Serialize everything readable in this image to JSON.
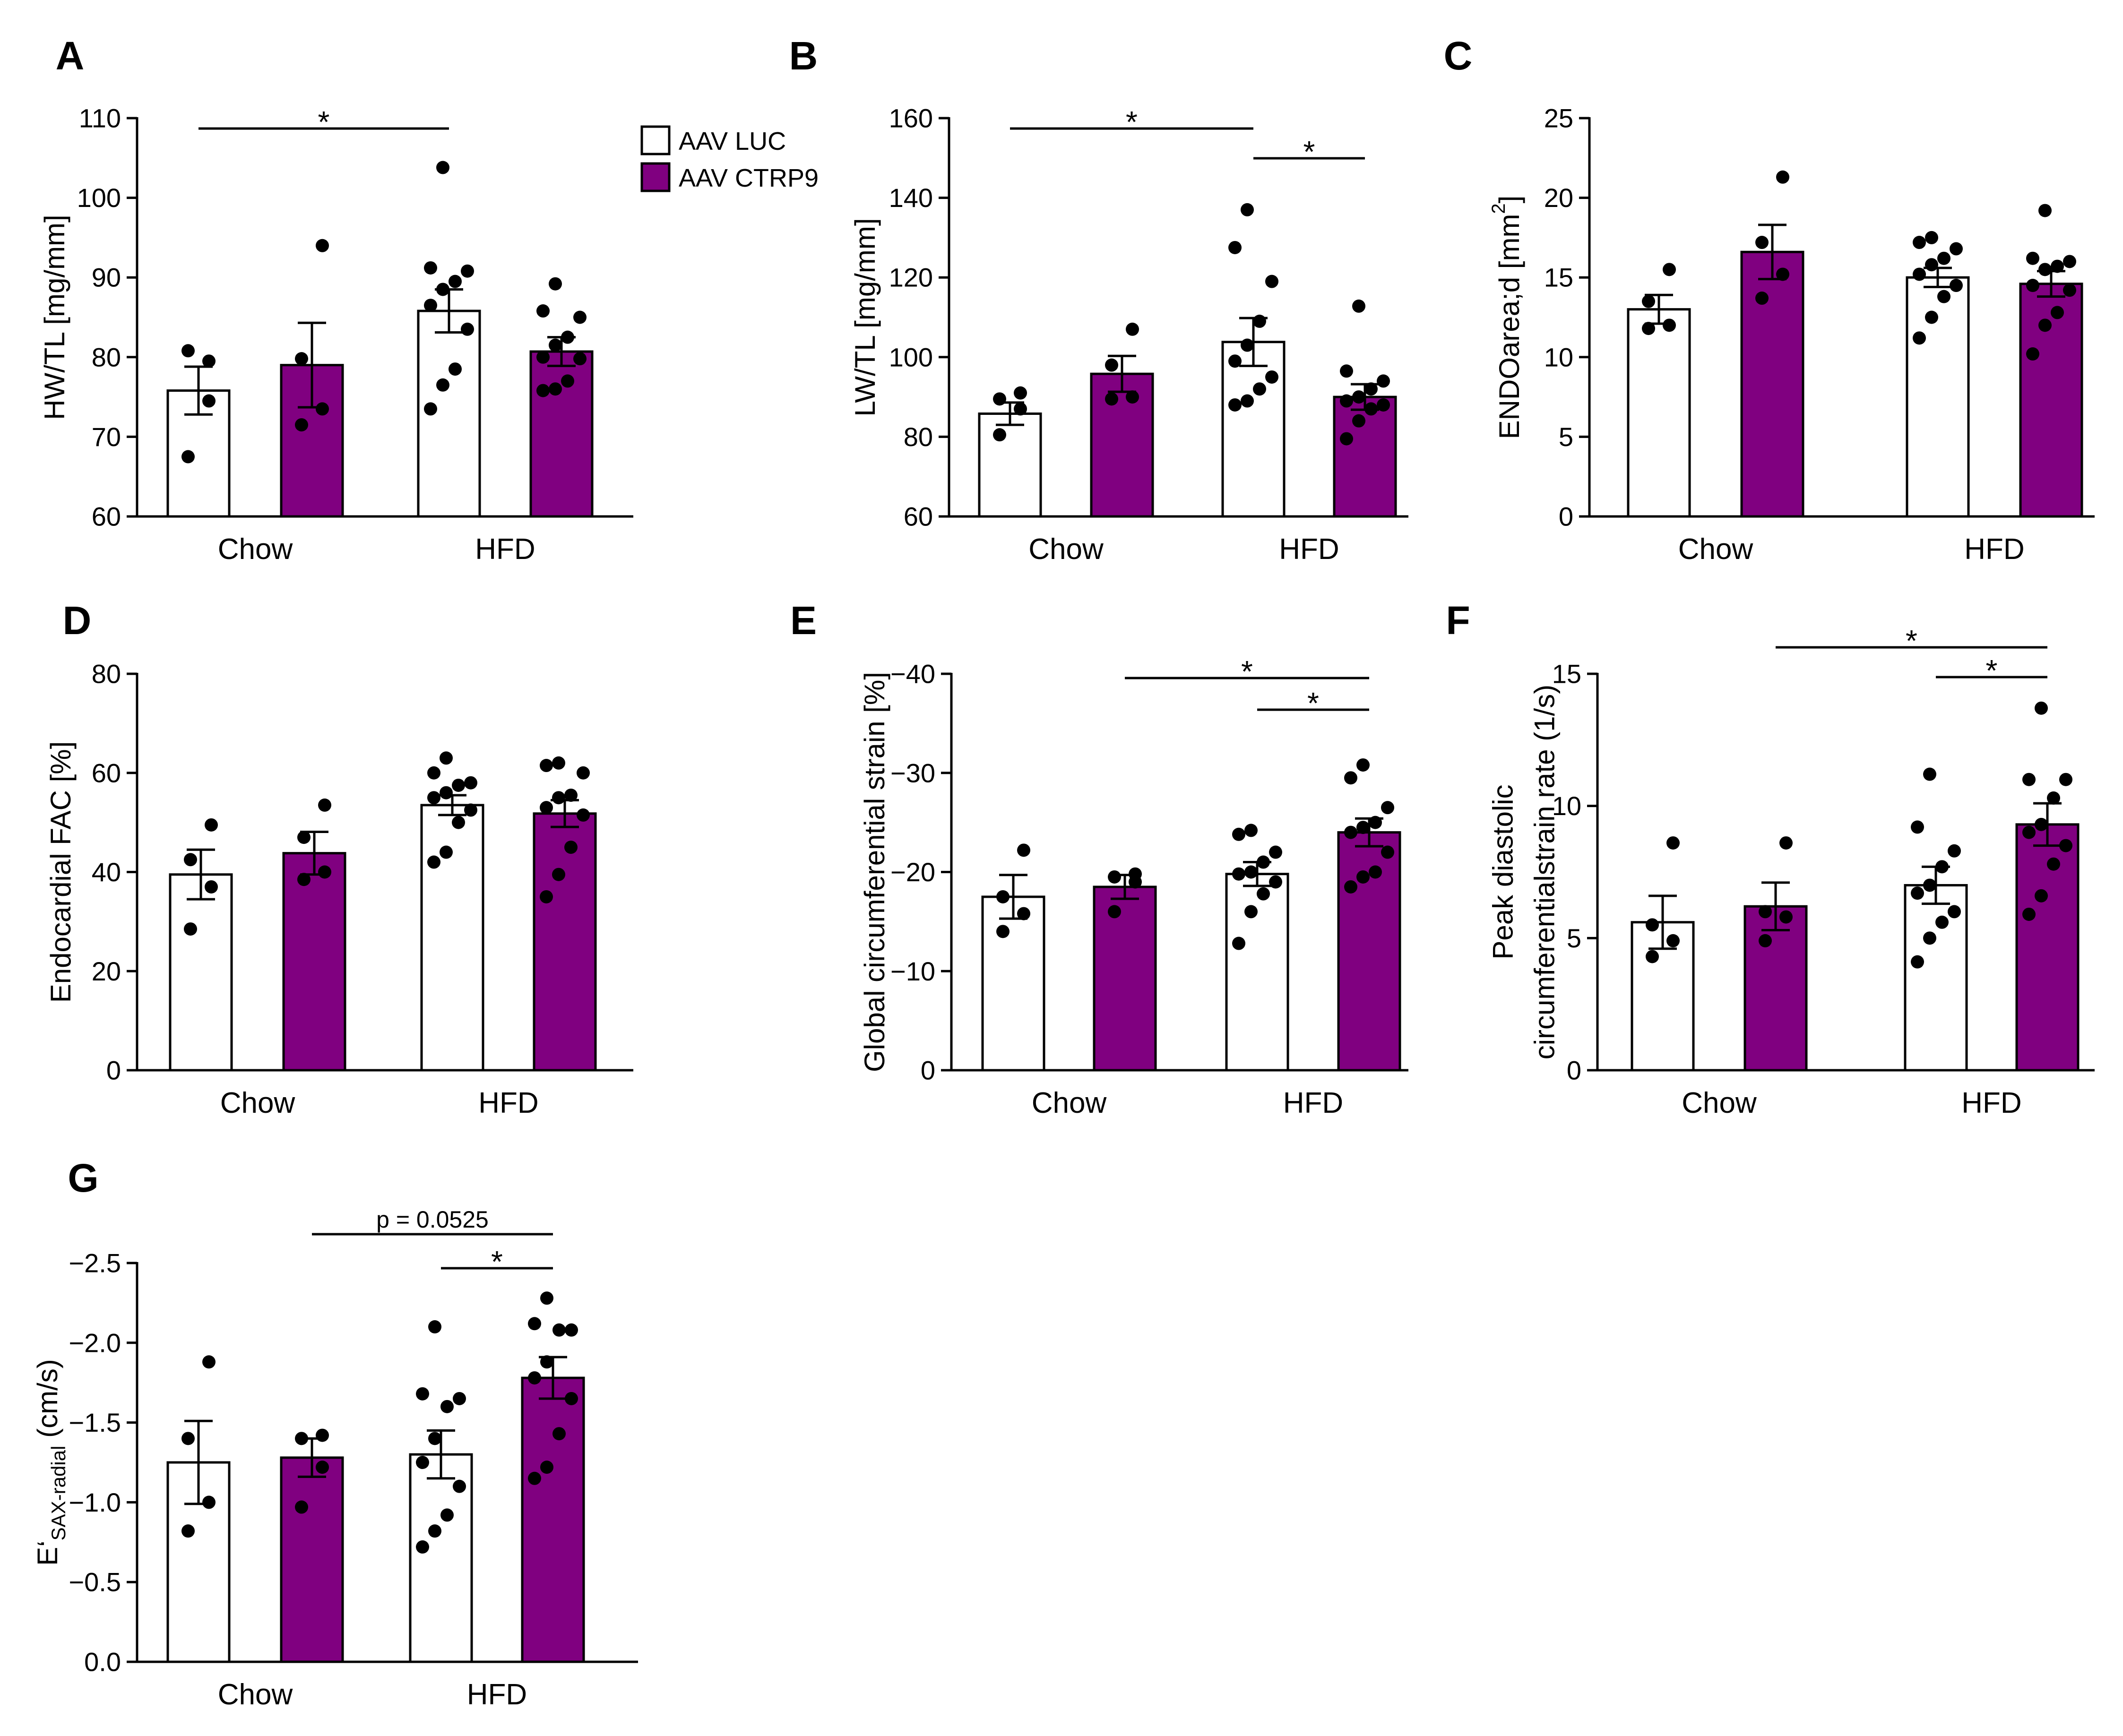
{
  "colors": {
    "luc": "#ffffff",
    "ctrp9": "#800080",
    "stroke": "#000000"
  },
  "legend": [
    {
      "label": "AAV LUC",
      "color": "#ffffff"
    },
    {
      "label": "AAV CTRP9",
      "color": "#800080"
    }
  ],
  "chart_data": [
    {
      "id": "A",
      "letter": "A",
      "type": "bar",
      "title": "",
      "xlabel": "",
      "ylabel": "HW/TL [mg/mm]",
      "categories": [
        "Chow",
        "HFD"
      ],
      "ylim": [
        60,
        110
      ],
      "ticks": [
        60,
        70,
        80,
        90,
        100,
        110
      ],
      "tick_labels": [
        "60",
        "70",
        "80",
        "90",
        "100",
        "110"
      ],
      "series": [
        {
          "name": "AAV LUC",
          "means": [
            75.8,
            85.8
          ],
          "sem": [
            3.0,
            2.7
          ],
          "points": [
            [
              67.5,
              79.5,
              80.8,
              74.5
            ],
            [
              73.5,
              76.5,
              78.5,
              83.5,
              86.5,
              88.5,
              89.5,
              90.8,
              91.2,
              103.8
            ]
          ]
        },
        {
          "name": "AAV CTRP9",
          "means": [
            79.0,
            80.7
          ],
          "sem": [
            5.3,
            1.8
          ],
          "points": [
            [
              71.5,
              73.5,
              79.8,
              94.0
            ],
            [
              75.8,
              76.0,
              77.0,
              79.8,
              80.0,
              81.5,
              82.5,
              85.0,
              85.8,
              89.2
            ]
          ]
        }
      ],
      "significance": [
        {
          "from": [
            0,
            0
          ],
          "to": [
            1,
            0
          ],
          "label": "*"
        }
      ]
    },
    {
      "id": "B",
      "letter": "B",
      "type": "bar",
      "title": "",
      "xlabel": "",
      "ylabel": "LW/TL [mg/mm]",
      "categories": [
        "Chow",
        "HFD"
      ],
      "ylim": [
        60,
        160
      ],
      "ticks": [
        60,
        80,
        100,
        120,
        140,
        160
      ],
      "tick_labels": [
        "60",
        "80",
        "100",
        "120",
        "140",
        "160"
      ],
      "series": [
        {
          "name": "AAV LUC",
          "means": [
            85.8,
            103.8
          ],
          "sem": [
            2.8,
            6.0
          ],
          "points": [
            [
              80.5,
              87.0,
              89.5,
              91.0
            ],
            [
              88.0,
              89.0,
              92.0,
              95.0,
              99.0,
              103.0,
              109.0,
              119.0,
              127.5,
              137.0
            ]
          ]
        },
        {
          "name": "AAV CTRP9",
          "means": [
            95.8,
            90.0
          ],
          "sem": [
            4.5,
            3.2
          ],
          "points": [
            [
              89.5,
              90.0,
              98.0,
              107.0
            ],
            [
              79.5,
              84.0,
              87.0,
              88.0,
              89.0,
              90.0,
              92.0,
              94.0,
              96.5,
              112.8
            ]
          ]
        }
      ],
      "significance": [
        {
          "from": [
            0,
            0
          ],
          "to": [
            1,
            0
          ],
          "label": "*"
        },
        {
          "from": [
            1,
            0
          ],
          "to": [
            1,
            1
          ],
          "label": "*"
        }
      ]
    },
    {
      "id": "C",
      "letter": "C",
      "type": "bar",
      "title": "",
      "xlabel": "",
      "ylabel": "ENDOarea;d [mm",
      "ylabel_sup": "2",
      "ylabel_end": "]",
      "categories": [
        "Chow",
        "HFD"
      ],
      "ylim": [
        0,
        25
      ],
      "ticks": [
        0,
        5,
        10,
        15,
        20,
        25
      ],
      "tick_labels": [
        "0",
        "5",
        "10",
        "15",
        "20",
        "25"
      ],
      "series": [
        {
          "name": "AAV LUC",
          "means": [
            13.0,
            15.0
          ],
          "sem": [
            0.9,
            0.6
          ],
          "points": [
            [
              11.8,
              12.0,
              13.5,
              15.5
            ],
            [
              11.2,
              12.5,
              13.8,
              14.5,
              15.2,
              15.8,
              16.2,
              16.8,
              17.2,
              17.5
            ]
          ]
        },
        {
          "name": "AAV CTRP9",
          "means": [
            16.6,
            14.6
          ],
          "sem": [
            1.7,
            0.8
          ],
          "points": [
            [
              13.7,
              15.2,
              17.2,
              21.3
            ],
            [
              10.2,
              12.0,
              12.8,
              14.2,
              14.5,
              15.5,
              15.7,
              16.0,
              16.2,
              19.2
            ]
          ]
        }
      ],
      "significance": []
    },
    {
      "id": "D",
      "letter": "D",
      "type": "bar",
      "title": "",
      "xlabel": "",
      "ylabel": "Endocardial FAC [%]",
      "categories": [
        "Chow",
        "HFD"
      ],
      "ylim": [
        0,
        80
      ],
      "ticks": [
        0,
        20,
        40,
        60,
        80
      ],
      "tick_labels": [
        "0",
        "20",
        "40",
        "60",
        "80"
      ],
      "series": [
        {
          "name": "AAV LUC",
          "means": [
            39.5,
            53.5
          ],
          "sem": [
            5.0,
            2.0
          ],
          "points": [
            [
              28.5,
              37.0,
              42.5,
              49.5
            ],
            [
              42.0,
              44.0,
              50.0,
              52.5,
              55.0,
              56.0,
              57.5,
              58.0,
              60.0,
              63.0
            ]
          ]
        },
        {
          "name": "AAV CTRP9",
          "means": [
            43.8,
            51.8
          ],
          "sem": [
            4.3,
            2.7
          ],
          "points": [
            [
              38.5,
              40.0,
              47.0,
              53.5
            ],
            [
              35.0,
              39.5,
              45.0,
              51.5,
              53.0,
              55.0,
              55.5,
              60.0,
              61.5,
              62.0
            ]
          ]
        }
      ],
      "significance": []
    },
    {
      "id": "E",
      "letter": "E",
      "type": "bar",
      "title": "",
      "xlabel": "",
      "ylabel": "Global circumferential strain [%]",
      "categories": [
        "Chow",
        "HFD"
      ],
      "ylim": [
        0,
        40
      ],
      "ticks": [
        0,
        10,
        20,
        30,
        40
      ],
      "tick_labels": [
        "0",
        "−10",
        "−20",
        "−30",
        "−40"
      ],
      "series": [
        {
          "name": "AAV LUC",
          "means": [
            17.5,
            19.8
          ],
          "sem": [
            2.2,
            1.2
          ],
          "points": [
            [
              14.0,
              15.8,
              17.5,
              22.2
            ],
            [
              12.8,
              16.0,
              17.8,
              19.0,
              19.8,
              20.0,
              21.0,
              22.0,
              23.8,
              24.2
            ]
          ]
        },
        {
          "name": "AAV CTRP9",
          "means": [
            18.5,
            24.0
          ],
          "sem": [
            1.2,
            1.4
          ],
          "points": [
            [
              16.0,
              19.0,
              19.5,
              19.8
            ],
            [
              18.5,
              19.5,
              20.0,
              22.0,
              24.0,
              24.5,
              25.0,
              26.5,
              29.5,
              30.8
            ]
          ]
        }
      ],
      "significance": [
        {
          "from": [
            0,
            1
          ],
          "to": [
            1,
            1
          ],
          "label": "*"
        },
        {
          "from": [
            1,
            0
          ],
          "to": [
            1,
            1
          ],
          "label": "*"
        }
      ]
    },
    {
      "id": "F",
      "letter": "F",
      "type": "bar",
      "title": "",
      "xlabel": "",
      "ylabel": "Peak diastolic",
      "ylabel2": "circumferentialstrain rate (1/s)",
      "categories": [
        "Chow",
        "HFD"
      ],
      "ylim": [
        0,
        15
      ],
      "ticks": [
        0,
        5,
        10,
        15
      ],
      "tick_labels": [
        "0",
        "5",
        "10",
        "15"
      ],
      "series": [
        {
          "name": "AAV LUC",
          "means": [
            5.6,
            7.0
          ],
          "sem": [
            1.0,
            0.7
          ],
          "points": [
            [
              4.3,
              4.9,
              5.5,
              8.6
            ],
            [
              4.1,
              5.0,
              5.6,
              6.0,
              6.7,
              7.0,
              7.7,
              8.3,
              9.2,
              11.2
            ]
          ]
        },
        {
          "name": "AAV CTRP9",
          "means": [
            6.2,
            9.3
          ],
          "sem": [
            0.9,
            0.8
          ],
          "points": [
            [
              4.9,
              5.8,
              6.0,
              8.6
            ],
            [
              5.9,
              6.6,
              7.8,
              8.5,
              9.0,
              9.3,
              10.3,
              11.0,
              11.0,
              13.7
            ]
          ]
        }
      ],
      "significance": [
        {
          "from": [
            0,
            1
          ],
          "to": [
            1,
            1
          ],
          "label": "*"
        },
        {
          "from": [
            1,
            0
          ],
          "to": [
            1,
            1
          ],
          "label": "*"
        }
      ]
    },
    {
      "id": "G",
      "letter": "G",
      "type": "bar",
      "title": "",
      "xlabel": "",
      "ylabel": "E‘",
      "ylabel_sub": "SAX-radial",
      "ylabel_end": " (cm/s)",
      "categories": [
        "Chow",
        "HFD"
      ],
      "ylim": [
        0,
        2.5
      ],
      "ticks": [
        0,
        0.5,
        1.0,
        1.5,
        2.0,
        2.5
      ],
      "tick_labels": [
        "0.0",
        "−0.5",
        "−1.0",
        "−1.5",
        "−2.0",
        "−2.5"
      ],
      "series": [
        {
          "name": "AAV LUC",
          "means": [
            1.25,
            1.3
          ],
          "sem": [
            0.26,
            0.15
          ],
          "points": [
            [
              0.82,
              1.0,
              1.4,
              1.88
            ],
            [
              0.72,
              0.82,
              0.92,
              1.1,
              1.25,
              1.4,
              1.6,
              1.65,
              1.68,
              2.1
            ]
          ]
        },
        {
          "name": "AAV CTRP9",
          "means": [
            1.28,
            1.78
          ],
          "sem": [
            0.12,
            0.13
          ],
          "points": [
            [
              0.97,
              1.22,
              1.4,
              1.42
            ],
            [
              1.15,
              1.22,
              1.43,
              1.65,
              1.78,
              1.88,
              2.08,
              2.08,
              2.12,
              2.28
            ]
          ]
        }
      ],
      "significance": [
        {
          "from": [
            0,
            1
          ],
          "to": [
            1,
            1
          ],
          "label": "p = 0.0525",
          "italic_prefix": "p"
        },
        {
          "from": [
            1,
            0
          ],
          "to": [
            1,
            1
          ],
          "label": "*"
        }
      ]
    }
  ]
}
